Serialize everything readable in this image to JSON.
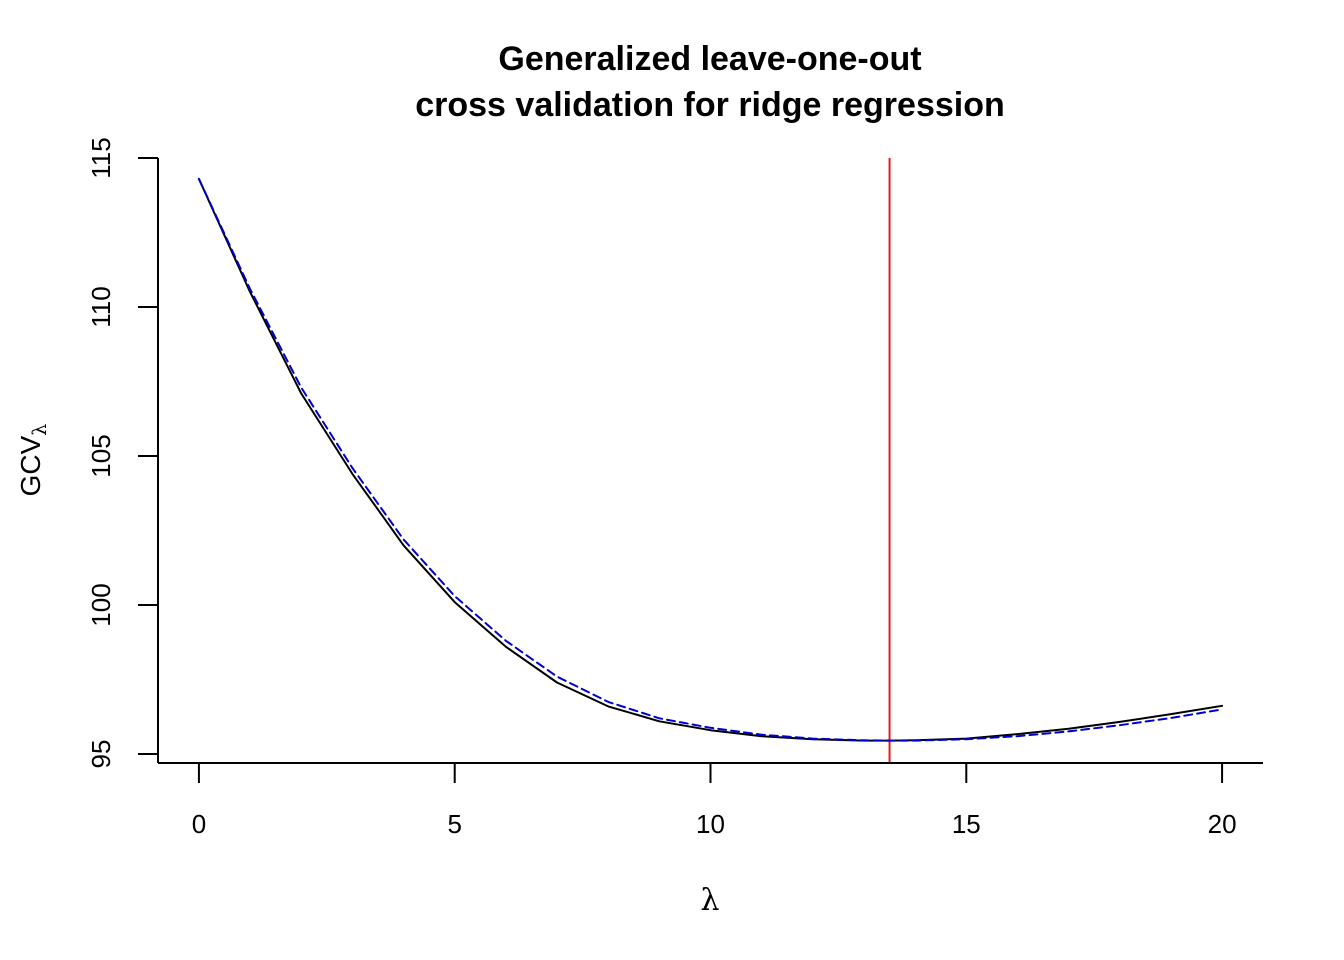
{
  "chart_data": {
    "type": "line",
    "title": [
      "Generalized leave-one-out",
      "cross validation for ridge regression"
    ],
    "xlabel": "λ",
    "ylabel": {
      "main": "GCV",
      "subscript": "λ"
    },
    "xlim": [
      -0.8,
      20.8
    ],
    "ylim": [
      94.7,
      115
    ],
    "xticks": [
      0,
      5,
      10,
      15,
      20
    ],
    "yticks": [
      95,
      100,
      105,
      110,
      115
    ],
    "grid": false,
    "legend": "none",
    "vline": {
      "x": 13.5,
      "color": "#e41a1c"
    },
    "series": [
      {
        "style": "solid",
        "color": "#000000",
        "x": [
          0,
          1,
          2,
          3,
          4,
          5,
          6,
          7,
          8,
          9,
          10,
          11,
          12,
          13,
          13.5,
          14,
          15,
          16,
          17,
          18,
          19,
          20
        ],
        "y": [
          114.3,
          110.5,
          107.1,
          104.4,
          102.0,
          100.1,
          98.6,
          97.4,
          96.6,
          96.1,
          95.8,
          95.6,
          95.5,
          95.45,
          95.45,
          95.46,
          95.52,
          95.67,
          95.85,
          96.08,
          96.34,
          96.62
        ]
      },
      {
        "style": "dashed",
        "color": "#0000cc",
        "x": [
          0,
          1,
          2,
          3,
          4,
          5,
          6,
          7,
          8,
          9,
          10,
          11,
          12,
          13,
          13.5,
          14,
          15,
          16,
          17,
          18,
          19,
          20
        ],
        "y": [
          114.3,
          110.6,
          107.3,
          104.6,
          102.2,
          100.3,
          98.8,
          97.6,
          96.75,
          96.2,
          95.88,
          95.65,
          95.52,
          95.46,
          95.45,
          95.45,
          95.5,
          95.6,
          95.76,
          95.97,
          96.21,
          96.5
        ]
      }
    ]
  }
}
